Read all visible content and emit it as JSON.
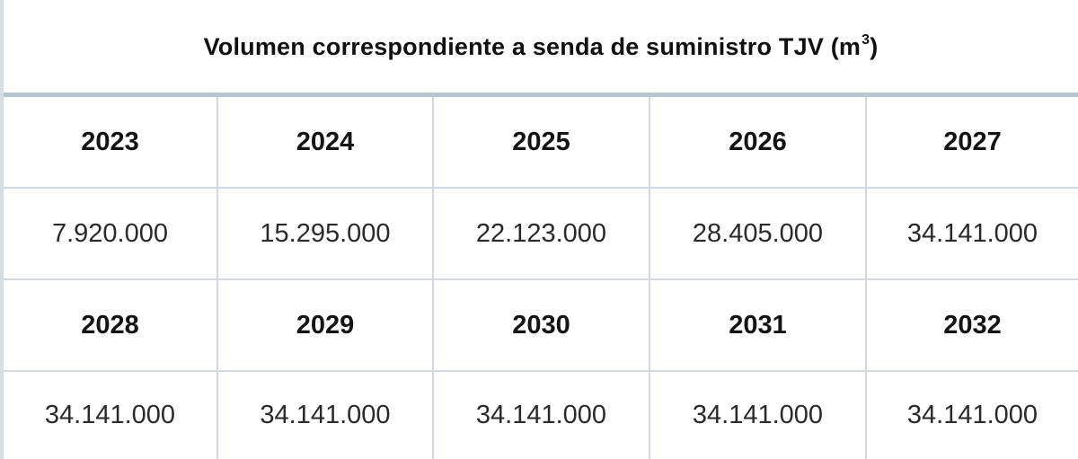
{
  "title": {
    "text": "Volumen correspondiente a senda de suministro TJV (m",
    "superscript": "3",
    "closing": ")"
  },
  "rows": [
    {
      "kind": "years",
      "cells": [
        "2023",
        "2024",
        "2025",
        "2026",
        "2027"
      ]
    },
    {
      "kind": "values",
      "cells": [
        "7.920.000",
        "15.295.000",
        "22.123.000",
        "28.405.000",
        "34.141.000"
      ]
    },
    {
      "kind": "years",
      "cells": [
        "2028",
        "2029",
        "2030",
        "2031",
        "2032"
      ]
    },
    {
      "kind": "values",
      "cells": [
        "34.141.000",
        "34.141.000",
        "34.141.000",
        "34.141.000",
        "34.141.000"
      ]
    }
  ],
  "chart_data": {
    "type": "table",
    "title": "Volumen correspondiente a senda de suministro TJV (m3)",
    "columns": [
      "2023",
      "2024",
      "2025",
      "2026",
      "2027",
      "2028",
      "2029",
      "2030",
      "2031",
      "2032"
    ],
    "values": [
      7920000,
      15295000,
      22123000,
      28405000,
      34141000,
      34141000,
      34141000,
      34141000,
      34141000,
      34141000
    ]
  },
  "colors": {
    "border": "#d3dbe2",
    "title_rule": "#b8c4cf",
    "left_edge": "#d6dde3"
  }
}
